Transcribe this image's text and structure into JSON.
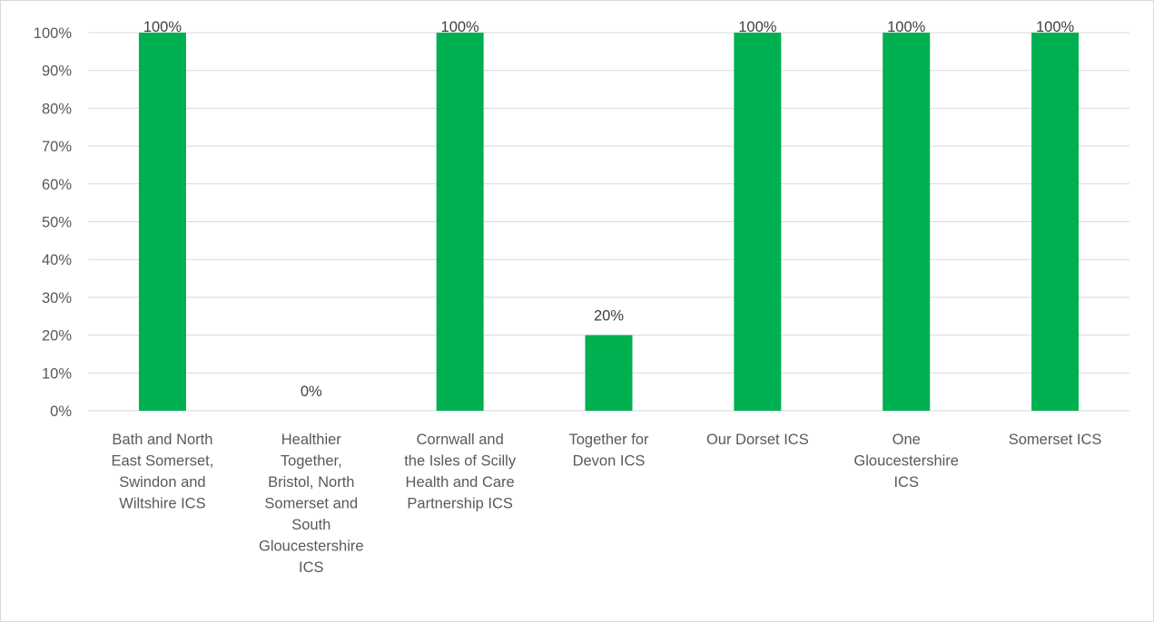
{
  "chart_data": {
    "type": "bar",
    "title": "",
    "xlabel": "",
    "ylabel": "",
    "ylim": [
      0,
      100
    ],
    "y_unit": "%",
    "y_ticks": [
      "0%",
      "10%",
      "20%",
      "30%",
      "40%",
      "50%",
      "60%",
      "70%",
      "80%",
      "90%",
      "100%"
    ],
    "grid": true,
    "legend": "none",
    "bar_color": "#00b050",
    "categories": [
      [
        "Bath and North",
        "East Somerset,",
        "Swindon and",
        "Wiltshire ICS"
      ],
      [
        "Healthier",
        "Together,",
        "Bristol, North",
        "Somerset and",
        "South",
        "Gloucestershire",
        "ICS"
      ],
      [
        "Cornwall and",
        "the Isles of Scilly",
        "Health and Care",
        "Partnership ICS"
      ],
      [
        "Together for",
        "Devon ICS"
      ],
      [
        "Our Dorset ICS"
      ],
      [
        "One",
        "Gloucestershire",
        "ICS"
      ],
      [
        "Somerset ICS"
      ]
    ],
    "values": [
      100,
      0,
      100,
      20,
      100,
      100,
      100
    ],
    "data_labels": [
      "100%",
      "0%",
      "100%",
      "20%",
      "100%",
      "100%",
      "100%"
    ]
  }
}
